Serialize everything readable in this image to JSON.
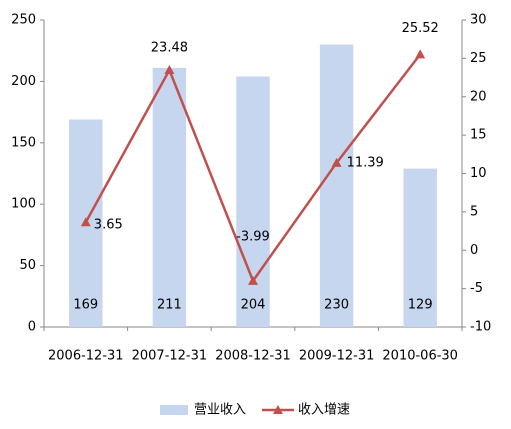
{
  "chart_data": {
    "type": "bar-line",
    "categories": [
      "2006-12-31",
      "2007-12-31",
      "2008-12-31",
      "2009-12-31",
      "2010-06-30"
    ],
    "series": [
      {
        "name": "营业收入",
        "type": "bar",
        "color": "#c6d6ef",
        "values": [
          169,
          211,
          204,
          230,
          129
        ]
      },
      {
        "name": "收入增速",
        "type": "line",
        "axis": "y2",
        "color": "#c0504d",
        "values": [
          3.65,
          23.48,
          -3.99,
          11.39,
          25.52
        ]
      }
    ],
    "ylim": [
      0,
      250
    ],
    "yticks": [
      0,
      50,
      100,
      150,
      200,
      250
    ],
    "y2lim": [
      -10,
      30
    ],
    "y2ticks": [
      -10,
      -5,
      0,
      5,
      10,
      15,
      20,
      25,
      30
    ],
    "grid": false,
    "legend": "bottom"
  }
}
